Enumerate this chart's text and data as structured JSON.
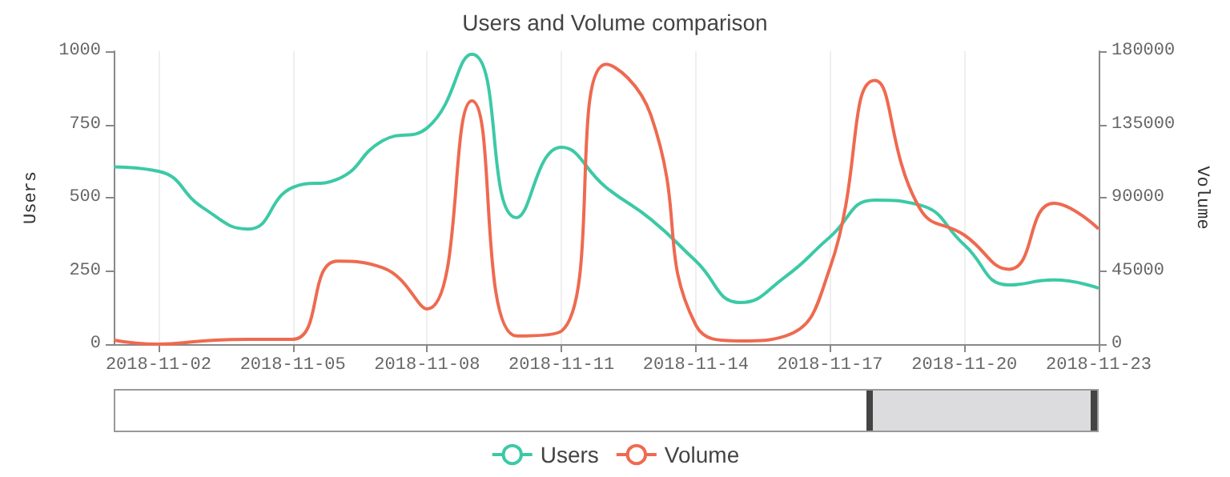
{
  "chart_data": {
    "type": "line",
    "title": "Users and Volume comparison",
    "ylabel": "Users",
    "y2label": "Volume",
    "x": [
      "2018-11-01",
      "2018-11-02",
      "2018-11-03",
      "2018-11-04",
      "2018-11-05",
      "2018-11-06",
      "2018-11-07",
      "2018-11-08",
      "2018-11-09",
      "2018-11-10",
      "2018-11-11",
      "2018-11-12",
      "2018-11-13",
      "2018-11-14",
      "2018-11-15",
      "2018-11-16",
      "2018-11-17",
      "2018-11-18",
      "2018-11-19",
      "2018-11-20",
      "2018-11-21",
      "2018-11-22",
      "2018-11-23"
    ],
    "series": [
      {
        "name": "Users",
        "color": "#3cc9a6",
        "values": [
          605,
          590,
          465,
          393,
          535,
          563,
          694,
          738,
          990,
          432,
          672,
          535,
          426,
          284,
          142,
          230,
          366,
          492,
          475,
          339,
          202,
          219,
          191
        ]
      },
      {
        "name": "Volume",
        "color": "#ee6a50",
        "axis": "y2",
        "values": [
          2500,
          0,
          2000,
          3000,
          3000,
          51000,
          47000,
          21600,
          149500,
          5000,
          8000,
          172000,
          140600,
          11800,
          2000,
          5000,
          47000,
          162000,
          83600,
          67000,
          46000,
          86600,
          70800
        ]
      }
    ],
    "xlim": [
      "2018-11-01",
      "2018-11-23"
    ],
    "xticks": [
      "2018-11-02",
      "2018-11-05",
      "2018-11-08",
      "2018-11-11",
      "2018-11-14",
      "2018-11-17",
      "2018-11-20",
      "2018-11-23"
    ],
    "ylim": [
      0,
      1000
    ],
    "yticks": [
      0,
      250,
      500,
      750,
      1000
    ],
    "y2lim": [
      0,
      180000
    ],
    "y2ticks": [
      0,
      45000,
      90000,
      135000,
      180000
    ],
    "grid": "x",
    "legend": "bottom",
    "marker": "none",
    "line_style": "solid"
  }
}
